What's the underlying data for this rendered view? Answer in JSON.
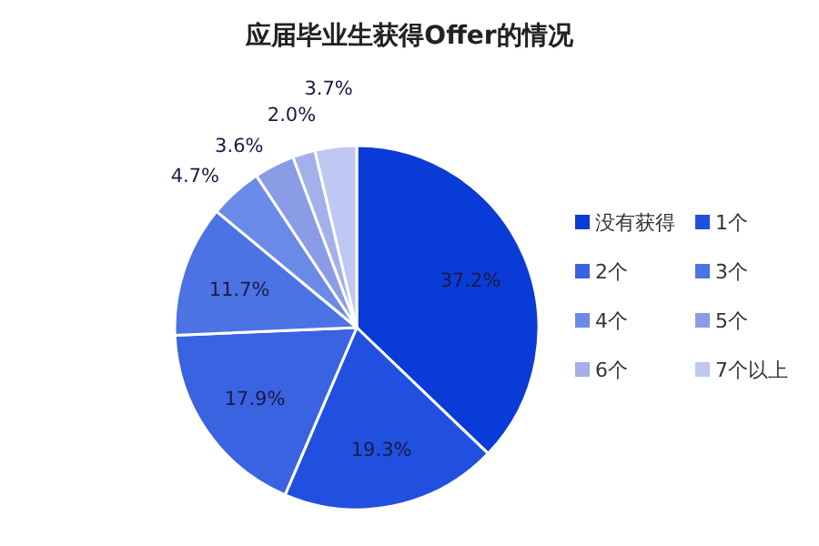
{
  "chart_data": {
    "type": "pie",
    "title": "应届毕业生获得Offer的情况",
    "categories": [
      "没有获得",
      "1个",
      "2个",
      "3个",
      "4个",
      "5个",
      "6个",
      "7个以上"
    ],
    "values": [
      37.2,
      19.3,
      17.9,
      11.7,
      4.7,
      3.6,
      2.0,
      3.7
    ],
    "value_labels": [
      "37.2%",
      "19.3%",
      "17.9%",
      "11.7%",
      "4.7%",
      "3.6%",
      "2.0%",
      "3.7%"
    ],
    "colors": [
      "#0a3bd6",
      "#2150e0",
      "#3a63e2",
      "#4c73e4",
      "#6b8ae8",
      "#8a9ce6",
      "#a3b0ea",
      "#bfc8f3"
    ],
    "legend": "right"
  }
}
